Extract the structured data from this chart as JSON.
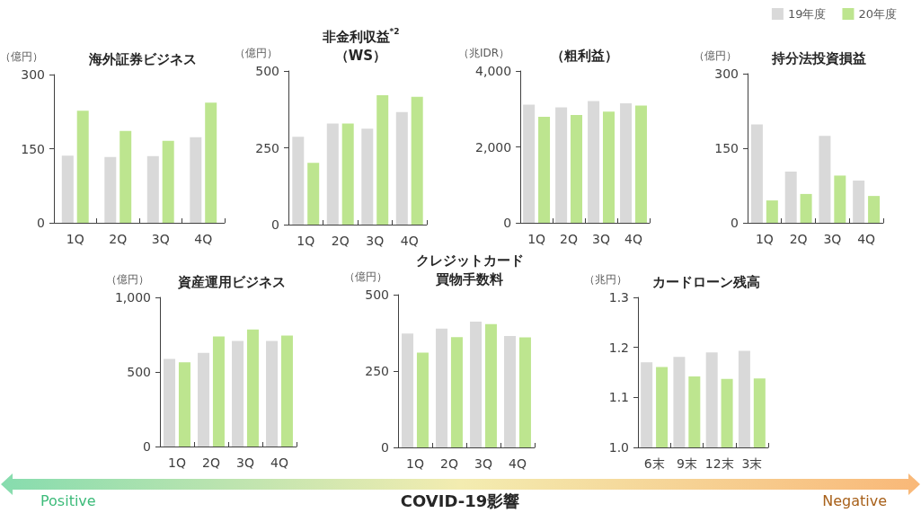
{
  "chart_data": [
    {
      "type": "bar",
      "title": "海外証券ビジネス",
      "ylabel": "（億円）",
      "categories": [
        "1Q",
        "2Q",
        "3Q",
        "4Q"
      ],
      "ylim": [
        0,
        300
      ],
      "yticks": [
        0,
        150,
        300
      ],
      "series": [
        {
          "color": "#d9d9d9",
          "values": [
            136,
            133,
            135,
            173
          ]
        },
        {
          "color": "#bde58f",
          "values": [
            227,
            186,
            166,
            243
          ]
        }
      ]
    },
    {
      "type": "bar",
      "title": "非金利収益$^{*2}$\n（WS）",
      "ylabel": "（億円）",
      "categories": [
        "1Q",
        "2Q",
        "3Q",
        "4Q"
      ],
      "ylim": [
        0,
        500
      ],
      "yticks": [
        0,
        250,
        500
      ],
      "series": [
        {
          "color": "#d9d9d9",
          "values": [
            286,
            329,
            312,
            366
          ]
        },
        {
          "color": "#bde58f",
          "values": [
            201,
            329,
            421,
            416
          ]
        }
      ]
    },
    {
      "type": "bar",
      "title": "（粗利益）",
      "ylabel": "（兆IDR）",
      "categories": [
        "1Q",
        "2Q",
        "3Q",
        "4Q"
      ],
      "ylim": [
        0,
        4000
      ],
      "yticks": [
        0,
        {
          "value": 2000,
          "label": "2,000"
        },
        {
          "value": 4000,
          "label": "4,000"
        }
      ],
      "series": [
        {
          "color": "#d9d9d9",
          "values": [
            3110,
            3040,
            3210,
            3150
          ]
        },
        {
          "color": "#bde58f",
          "values": [
            2790,
            2840,
            2930,
            3090
          ]
        }
      ]
    },
    {
      "type": "bar",
      "title": "持分法投資損益",
      "ylabel": "（億円）",
      "categories": [
        "1Q",
        "2Q",
        "3Q",
        "4Q"
      ],
      "ylim": [
        0,
        300
      ],
      "yticks": [
        0,
        150,
        300
      ],
      "legend": "top right",
      "series": [
        {
          "name": "19年度",
          "color": "#d9d9d9",
          "values": [
            198,
            103,
            175,
            85
          ]
        },
        {
          "name": "20年度",
          "color": "#bde58f",
          "values": [
            45,
            58,
            95,
            54
          ]
        }
      ]
    },
    {
      "type": "bar",
      "title": "資産運用ビジネス",
      "ylabel": "（億円）",
      "categories": [
        "1Q",
        "2Q",
        "3Q",
        "4Q"
      ],
      "ylim": [
        0,
        1000
      ],
      "yticks": [
        0,
        500,
        {
          "value": 1000,
          "label": "1,000"
        }
      ],
      "series": [
        {
          "color": "#d9d9d9",
          "values": [
            588,
            628,
            708,
            708
          ]
        },
        {
          "color": "#bde58f",
          "values": [
            565,
            738,
            785,
            744
          ]
        }
      ]
    },
    {
      "type": "bar",
      "title": "クレジットカード買物手数料",
      "ylabel": "（億円）",
      "categories": [
        "1Q",
        "2Q",
        "3Q",
        "4Q"
      ],
      "ylim": [
        0,
        500
      ],
      "yticks": [
        0,
        250,
        500
      ],
      "series": [
        {
          "color": "#d9d9d9",
          "values": [
            373,
            389,
            412,
            365
          ]
        },
        {
          "color": "#bde58f",
          "values": [
            310,
            361,
            404,
            360
          ]
        }
      ]
    },
    {
      "type": "bar",
      "title": "カードローン残高",
      "ylabel": "（兆円）",
      "categories": [
        "6末",
        "9末",
        "12末",
        "3末"
      ],
      "ylim": [
        1,
        1.3
      ],
      "yticks": [
        {
          "value": 1,
          "label": "1.0"
        },
        1.1,
        1.2,
        1.3
      ],
      "series": [
        {
          "color": "#d9d9d9",
          "values": [
            1.17,
            1.181,
            1.19,
            1.193
          ]
        },
        {
          "color": "#bde58f",
          "values": [
            1.161,
            1.142,
            1.137,
            1.138
          ]
        }
      ]
    },
    {
      "type": "other",
      "annotations": [
        "Positive",
        "COVID-19影響",
        "Negative"
      ]
    }
  ]
}
